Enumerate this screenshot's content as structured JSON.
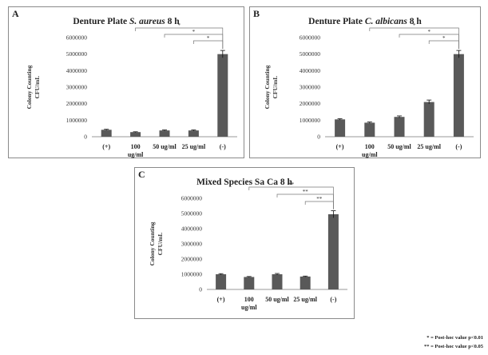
{
  "chart_data": [
    {
      "panel": "A",
      "title_plain": "Denture Plate ",
      "title_italic": "S. aureus",
      "title_tail": " 8 h",
      "type": "bar",
      "categories": [
        "(+)",
        "100\nug/ml",
        "50 ug/ml",
        "25 ug/ml",
        "(-)"
      ],
      "values": [
        420000,
        280000,
        380000,
        380000,
        5000000
      ],
      "errors": [
        30000,
        20000,
        30000,
        30000,
        220000
      ],
      "ylabel": "Colony Counting\nCFU/mL",
      "ylim": [
        0,
        6000000
      ],
      "yticks": [
        0,
        1000000,
        2000000,
        3000000,
        4000000,
        5000000,
        6000000
      ],
      "bar_color": "#595959",
      "sig_label": "*",
      "grid": false
    },
    {
      "panel": "B",
      "title_plain": "Denture Plate ",
      "title_italic": "C. albicans",
      "title_tail": " 8 h",
      "type": "bar",
      "categories": [
        "(+)",
        "100\nug/ml",
        "50 ug/ml",
        "25 ug/ml",
        "(-)"
      ],
      "values": [
        1050000,
        850000,
        1200000,
        2100000,
        5000000
      ],
      "errors": [
        40000,
        40000,
        60000,
        120000,
        220000
      ],
      "ylabel": "Colony Counting\nCFU/mL",
      "ylim": [
        0,
        6000000
      ],
      "yticks": [
        0,
        1000000,
        2000000,
        3000000,
        4000000,
        5000000,
        6000000
      ],
      "bar_color": "#595959",
      "sig_label": "*",
      "grid": false
    },
    {
      "panel": "C",
      "title_plain": "Mixed Species Sa Ca 8 h",
      "title_italic": "",
      "title_tail": "",
      "type": "bar",
      "categories": [
        "(+)",
        "100\nug/ml",
        "50 ug/ml",
        "25 ug/ml",
        "(-)"
      ],
      "values": [
        1000000,
        820000,
        1000000,
        850000,
        4950000
      ],
      "errors": [
        40000,
        30000,
        50000,
        30000,
        230000
      ],
      "ylabel": "Colony Counting\nCFU/mL",
      "ylim": [
        0,
        6000000
      ],
      "yticks": [
        0,
        1000000,
        2000000,
        3000000,
        4000000,
        5000000,
        6000000
      ],
      "bar_color": "#595959",
      "sig_label": "**",
      "grid": false
    }
  ],
  "legend_notes": {
    "single": "* = Post-hoc value p<0.01",
    "double": "** = Post-hoc value p<0.05"
  }
}
